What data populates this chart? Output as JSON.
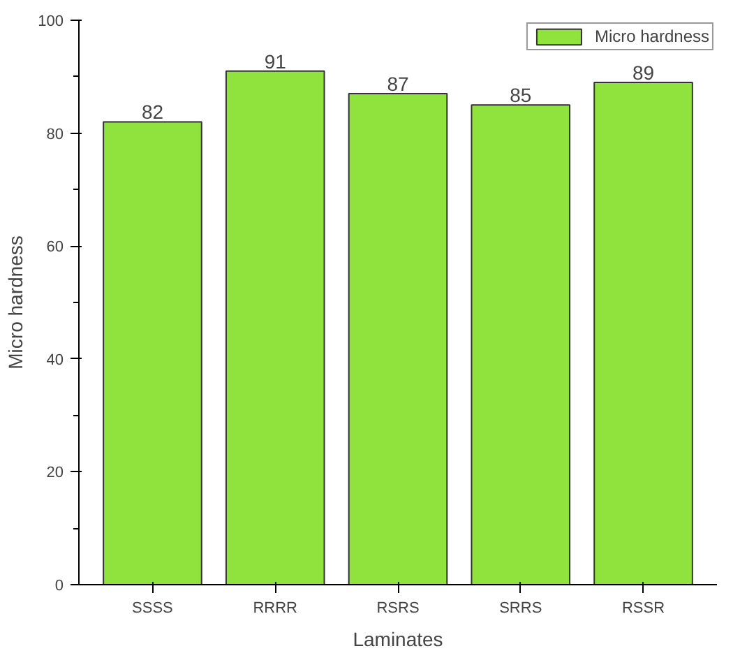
{
  "chart_data": {
    "type": "bar",
    "xlabel": "Laminates",
    "ylabel": "Micro hardness",
    "categories": [
      "SSSS",
      "RRRR",
      "RSRS",
      "SRRS",
      "RSSR"
    ],
    "series": [
      {
        "name": "Micro hardness",
        "color": "#8fe33c",
        "values": [
          82,
          91,
          87,
          85,
          89
        ]
      }
    ],
    "ylim": [
      0,
      100
    ],
    "yticks": [
      0,
      20,
      40,
      60,
      80,
      100
    ],
    "data_labels": true,
    "legend": "top right",
    "grid": false
  }
}
